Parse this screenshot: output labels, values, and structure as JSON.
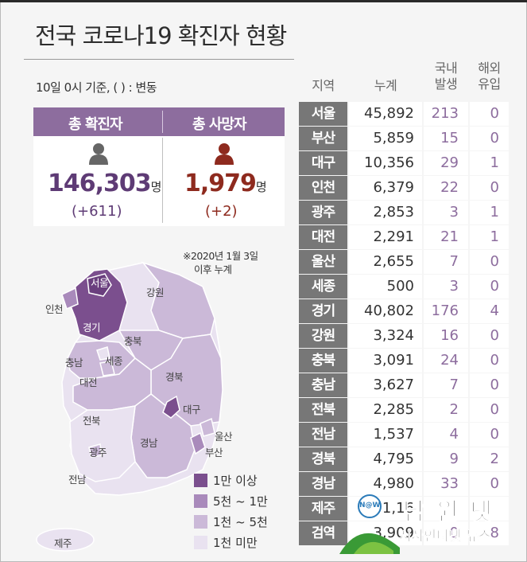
{
  "title": "전국 코로나19 확진자 현황",
  "subtitle": "10일 0시 기준, ( ) : 변동",
  "summary": {
    "confirmed": {
      "label": "총 확진자",
      "value": "146,303",
      "unit": "명",
      "delta": "(+611)"
    },
    "deaths": {
      "label": "총 사망자",
      "value": "1,979",
      "unit": "명",
      "delta": "(+2)"
    }
  },
  "map": {
    "note_line1": "※2020년 1월 3일",
    "note_line2": "이후 누계",
    "labels": {
      "seoul": "서울",
      "incheon": "인천",
      "gyeonggi": "경기",
      "gangwon": "강원",
      "chungbuk": "충북",
      "chungnam": "충남",
      "sejong": "세종",
      "daejeon": "대전",
      "gyeongbuk": "경북",
      "daegu": "대구",
      "jeonbuk": "전북",
      "ulsan": "울산",
      "gwangju": "광주",
      "gyeongnam": "경남",
      "busan": "부산",
      "jeonnam": "전남",
      "jeju": "제주"
    },
    "legend": [
      {
        "label": "1만 이상",
        "color": "#7b4f8e"
      },
      {
        "label": "5천 ~ 1만",
        "color": "#a98abb"
      },
      {
        "label": "1천 ~ 5천",
        "color": "#cbb9d8"
      },
      {
        "label": "1천 미만",
        "color": "#e9e2f0"
      }
    ]
  },
  "table": {
    "headers": {
      "region": "지역",
      "total": "누계",
      "domestic_1": "국내",
      "domestic_2": "발생",
      "overseas_1": "해외",
      "overseas_2": "유입"
    }
  },
  "chart_data": {
    "type": "table",
    "columns": [
      "지역",
      "누계",
      "국내 발생",
      "해외 유입"
    ],
    "rows": [
      {
        "region": "서울",
        "total": "45,892",
        "domestic": "213",
        "overseas": "0"
      },
      {
        "region": "부산",
        "total": "5,859",
        "domestic": "15",
        "overseas": "0"
      },
      {
        "region": "대구",
        "total": "10,356",
        "domestic": "29",
        "overseas": "1"
      },
      {
        "region": "인천",
        "total": "6,379",
        "domestic": "22",
        "overseas": "0"
      },
      {
        "region": "광주",
        "total": "2,853",
        "domestic": "3",
        "overseas": "1"
      },
      {
        "region": "대전",
        "total": "2,291",
        "domestic": "21",
        "overseas": "1"
      },
      {
        "region": "울산",
        "total": "2,655",
        "domestic": "7",
        "overseas": "0"
      },
      {
        "region": "세종",
        "total": "500",
        "domestic": "3",
        "overseas": "0"
      },
      {
        "region": "경기",
        "total": "40,802",
        "domestic": "176",
        "overseas": "4"
      },
      {
        "region": "강원",
        "total": "3,324",
        "domestic": "16",
        "overseas": "0"
      },
      {
        "region": "충북",
        "total": "3,091",
        "domestic": "24",
        "overseas": "0"
      },
      {
        "region": "충남",
        "total": "3,627",
        "domestic": "7",
        "overseas": "0"
      },
      {
        "region": "전북",
        "total": "2,285",
        "domestic": "2",
        "overseas": "0"
      },
      {
        "region": "전남",
        "total": "1,537",
        "domestic": "4",
        "overseas": "0"
      },
      {
        "region": "경북",
        "total": "4,795",
        "domestic": "9",
        "overseas": "2"
      },
      {
        "region": "경남",
        "total": "4,980",
        "domestic": "33",
        "overseas": "0"
      },
      {
        "region": "제주",
        "total": "1,16",
        "domestic": "",
        "overseas": ""
      },
      {
        "region": "검역",
        "total": "3,909",
        "domestic": "0",
        "overseas": "8"
      }
    ]
  },
  "watermark": {
    "name": "남 원 넷",
    "tagline": "시사인터넷 뉴스",
    "badge": "N@W"
  },
  "colors": {
    "purple": "#8d6d9e",
    "dark_red": "#8e2a1e",
    "gray_header": "#777777"
  }
}
